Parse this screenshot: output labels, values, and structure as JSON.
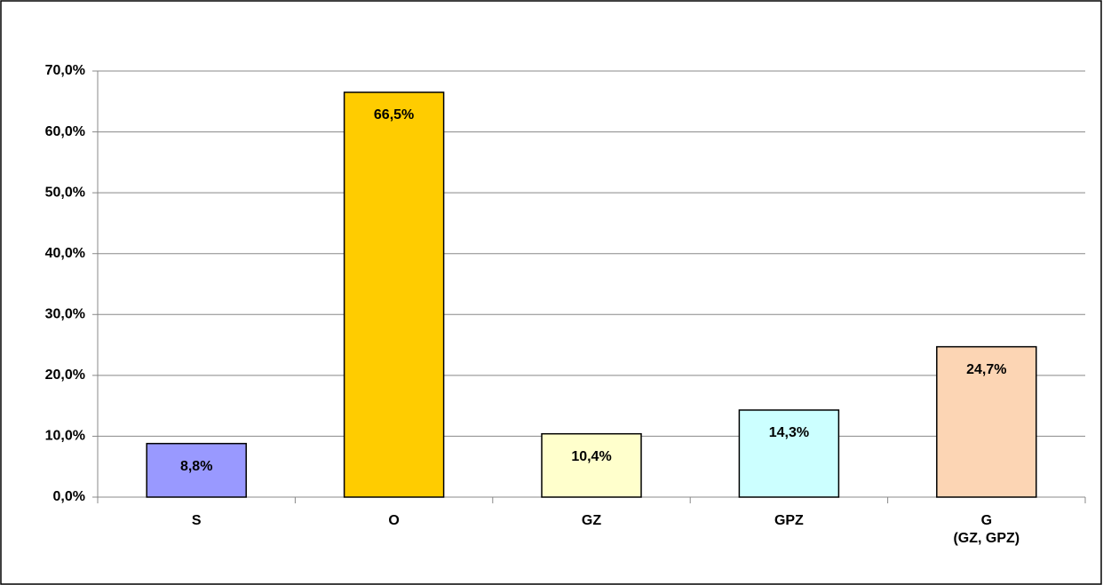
{
  "chart_data": {
    "type": "bar",
    "categories": [
      "S",
      "O",
      "GZ",
      "GPZ",
      "G\n(GZ, GPZ)"
    ],
    "values": [
      8.8,
      66.5,
      10.4,
      14.3,
      24.7
    ],
    "value_labels": [
      "8,8%",
      "66,5%",
      "10,4%",
      "14,3%",
      "24,7%"
    ],
    "colors": [
      "#9999ff",
      "#ffcc00",
      "#ffffcc",
      "#ccffff",
      "#fcd5b4"
    ],
    "ylim": [
      0,
      70
    ],
    "yticks": [
      {
        "value": 0,
        "label": "0,0%"
      },
      {
        "value": 10,
        "label": "10,0%"
      },
      {
        "value": 20,
        "label": "20,0%"
      },
      {
        "value": 30,
        "label": "30,0%"
      },
      {
        "value": 40,
        "label": "40,0%"
      },
      {
        "value": 50,
        "label": "50,0%"
      },
      {
        "value": 60,
        "label": "60,0%"
      },
      {
        "value": 70,
        "label": "70,0%"
      }
    ],
    "grid": true
  }
}
